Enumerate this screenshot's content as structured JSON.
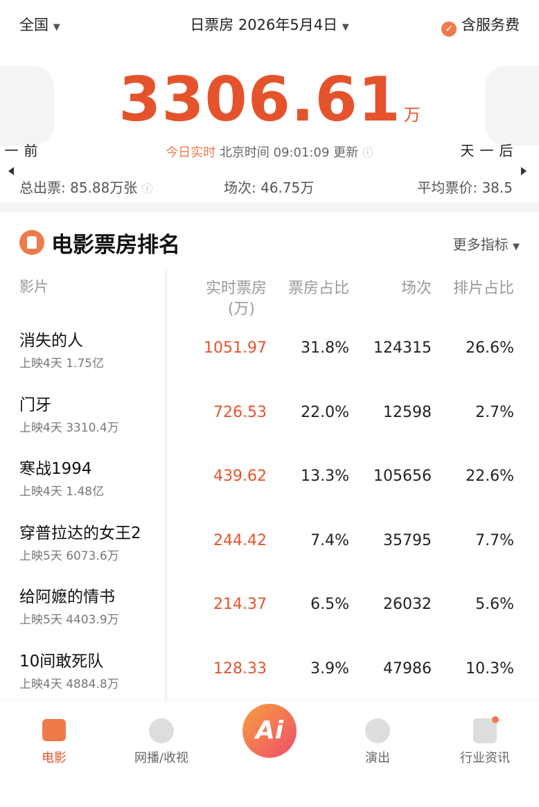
{
  "header": {
    "region": "全国",
    "title": "日票房 2026年5月4日",
    "service_fee": "含服务费"
  },
  "summary": {
    "prev": "前一天",
    "next": "后一天",
    "total": "3306.61",
    "unit": "万",
    "live": "今日实时",
    "update": "北京时间 09:01:09 更新",
    "stats": [
      "总出票: 85.88万张",
      "场次: 46.75万",
      "平均票价: 38.5"
    ]
  },
  "ranking": {
    "title": "电影票房排名",
    "more": "更多指标",
    "columns": [
      "影片",
      "实时票房",
      "票房占比",
      "场次",
      "排片占比"
    ],
    "box_office_unit": "(万)",
    "rows": [
      {
        "name": "消失的人",
        "release": "上映4天 1.75亿",
        "box_office": "1051.97",
        "share": "31.8%",
        "sessions": "124315",
        "schedule_share": "26.6%"
      },
      {
        "name": "门牙",
        "release": "上映4天 3310.4万",
        "box_office": "726.53",
        "share": "22.0%",
        "sessions": "12598",
        "schedule_share": "2.7%"
      },
      {
        "name": "寒战1994",
        "release": "上映4天 1.48亿",
        "box_office": "439.62",
        "share": "13.3%",
        "sessions": "105656",
        "schedule_share": "22.6%"
      },
      {
        "name": "穿普拉达的女王2",
        "release": "上映5天 6073.6万",
        "box_office": "244.42",
        "share": "7.4%",
        "sessions": "35795",
        "schedule_share": "7.7%"
      },
      {
        "name": "给阿嬷的情书",
        "release": "上映5天 4403.9万",
        "box_office": "214.37",
        "share": "6.5%",
        "sessions": "26032",
        "schedule_share": "5.6%"
      },
      {
        "name": "10间敢死队",
        "release": "上映4天 4884.8万",
        "box_office": "128.33",
        "share": "3.9%",
        "sessions": "47986",
        "schedule_share": "10.3%"
      }
    ]
  },
  "nav": {
    "items": [
      "电影",
      "网播/收视",
      "演出",
      "行业资讯"
    ],
    "ai": "Ai"
  }
}
